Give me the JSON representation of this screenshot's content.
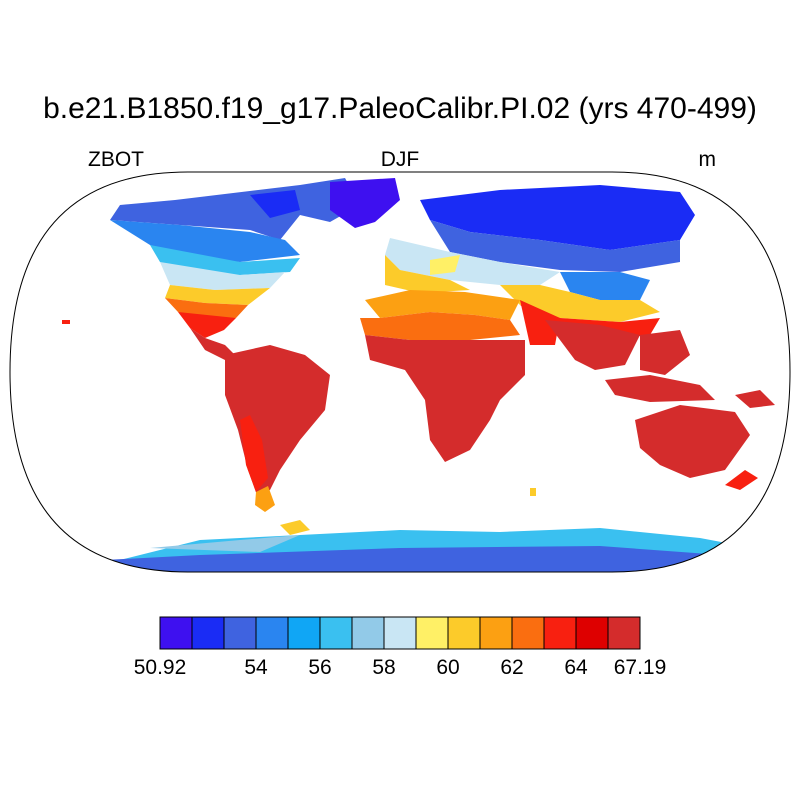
{
  "title": "b.e21.B1850.f19_g17.PaleoCalibr.PI.02 (yrs 470-499)",
  "left_label": "ZBOT",
  "center_label": "DJF",
  "right_label": "m",
  "colorbar": {
    "colors": [
      "#3e10f0",
      "#1a2cf5",
      "#3f63e0",
      "#2a85f0",
      "#10a6f5",
      "#3ac0f0",
      "#92cae8",
      "#c9e6f4",
      "#fff066",
      "#fccb2a",
      "#fca012",
      "#fa6e10",
      "#f82010",
      "#de0000",
      "#d42c2c"
    ],
    "tick_labels": [
      {
        "index": 0,
        "text": "50.92"
      },
      {
        "index": 3,
        "text": "54"
      },
      {
        "index": 5,
        "text": "56"
      },
      {
        "index": 7,
        "text": "58"
      },
      {
        "index": 9,
        "text": "60"
      },
      {
        "index": 11,
        "text": "62"
      },
      {
        "index": 13,
        "text": "64"
      },
      {
        "index": 15,
        "text": "67.19"
      }
    ]
  }
}
